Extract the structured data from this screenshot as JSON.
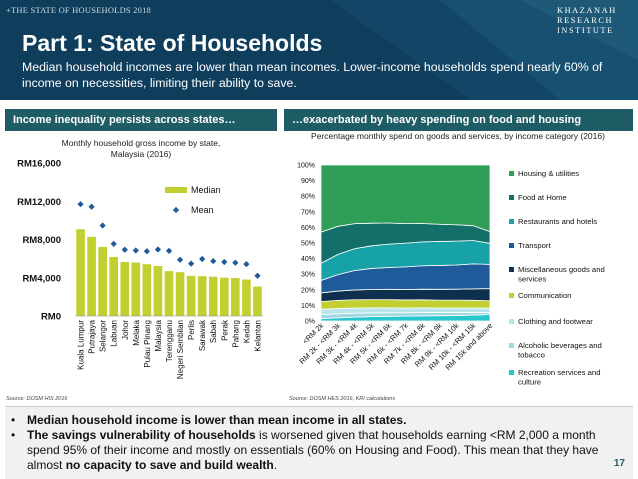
{
  "header": {
    "kicker": "+THE STATE OF HOUSEHOLDS 2018",
    "title": "Part 1: State of Households",
    "subtitle": "Median household incomes are lower than mean incomes. Lower-income households spend nearly 60% of income on necessities, limiting their ability to save.",
    "logo_lines": [
      "KHAZANAH",
      "RESEARCH",
      "INSTITUTE"
    ]
  },
  "banners": {
    "left": "Income inequality persists across states…",
    "right": "…exacerbated by heavy spending on food and housing"
  },
  "colors": {
    "header_bg": "#0f3d5c",
    "banner_bg": "#1e5c66",
    "median_bar": "#c2cf30",
    "mean_marker": "#1f5b9a"
  },
  "sources": {
    "left": "Source: DOSM HIS 2016",
    "right": "Source: DOSM HES 2016, KRI calculations"
  },
  "chart_data": [
    {
      "type": "bar",
      "title": "Monthly household gross income by state, Malaysia (2016)",
      "categories": [
        "Kuala Lumpur",
        "Putrajaya",
        "Selangor",
        "Labuan",
        "Johor",
        "Melaka",
        "Pulau Pinang",
        "Malaysia",
        "Terengganu",
        "Negeri Sembilan",
        "Perlis",
        "Sarawak",
        "Sabah",
        "Perak",
        "Pahang",
        "Kedah",
        "Kelantan"
      ],
      "series": [
        {
          "name": "Median",
          "type": "bar",
          "values": [
            9073,
            8275,
            7225,
            6174,
            5652,
            5588,
            5409,
            5228,
            4694,
            4579,
            4204,
            4163,
            4110,
            4006,
            3979,
            3811,
            3079
          ]
        },
        {
          "name": "Mean",
          "type": "scatter",
          "values": [
            11692,
            11420,
            9463,
            7541,
            6928,
            6849,
            6771,
            6958,
            6815,
            5887,
            5476,
            5959,
            5745,
            5645,
            5564,
            5429,
            4214
          ]
        }
      ],
      "y_tick_labels": [
        "RM0",
        "RM4,000",
        "RM8,000",
        "RM12,000",
        "RM16,000"
      ],
      "ylim": [
        0,
        16000
      ],
      "legend": "top-right",
      "grid": false
    },
    {
      "type": "area",
      "stacked": true,
      "title": "Percentage monthly spend on goods and services, by income category (2016)",
      "categories": [
        "<RM 2k",
        "RM 2k - <RM 3k",
        "RM 3k - <RM 4k",
        "RM 4k - <RM 5k",
        "RM 5k - <RM 6k",
        "RM 6k - <RM 7k",
        "RM 7k - <RM 8k",
        "RM 8k - <RM 9k",
        "RM 9k - <RM 10k",
        "RM 10k - <RM 15k",
        "RM 15k and above"
      ],
      "y_tick_labels": [
        "0%",
        "10%",
        "20%",
        "30%",
        "40%",
        "50%",
        "60%",
        "70%",
        "80%",
        "90%",
        "100%"
      ],
      "ylim": [
        0,
        100
      ],
      "legend": "right",
      "series": [
        {
          "name": "Recreation services and culture",
          "color": "#26c6cf",
          "values": [
            1.5,
            2.0,
            2.5,
            2.8,
            3.0,
            3.1,
            3.3,
            3.4,
            3.5,
            3.8,
            4.2
          ]
        },
        {
          "name": "Alcoholic beverages and tobacco",
          "color": "#9fd8e2",
          "values": [
            2.5,
            2.6,
            2.5,
            2.4,
            2.3,
            2.2,
            2.1,
            2.0,
            1.9,
            1.7,
            1.3
          ]
        },
        {
          "name": "Clothing and footwear",
          "color": "#b9e4ea",
          "values": [
            3.5,
            3.4,
            3.3,
            3.2,
            3.1,
            3.0,
            3.0,
            2.9,
            2.9,
            2.8,
            2.7
          ]
        },
        {
          "name": "Communication",
          "color": "#c2cf30",
          "values": [
            5.0,
            5.2,
            5.3,
            5.3,
            5.3,
            5.2,
            5.2,
            5.1,
            5.1,
            5.0,
            4.8
          ]
        },
        {
          "name": "Miscellaneous goods and services",
          "color": "#0e2f4d",
          "values": [
            5.5,
            6.0,
            6.3,
            6.5,
            6.6,
            6.7,
            6.8,
            6.9,
            7.0,
            7.3,
            7.8
          ]
        },
        {
          "name": "Transport",
          "color": "#1f5b9a",
          "values": [
            8.0,
            10.5,
            12.5,
            13.5,
            14.0,
            14.5,
            15.0,
            15.3,
            15.5,
            16.0,
            15.5
          ]
        },
        {
          "name": "Restaurants and hotels",
          "color": "#17a2a8",
          "values": [
            11.0,
            13.0,
            14.0,
            14.5,
            15.0,
            15.2,
            15.3,
            15.4,
            15.3,
            15.0,
            13.5
          ]
        },
        {
          "name": "Food at Home",
          "color": "#136f6a",
          "values": [
            20.0,
            18.0,
            16.0,
            14.5,
            13.5,
            12.5,
            11.8,
            11.0,
            10.5,
            9.5,
            7.5
          ]
        },
        {
          "name": "Housing & utilities",
          "color": "#2f9e56",
          "values": [
            43.0,
            39.3,
            37.6,
            37.3,
            37.2,
            37.6,
            37.5,
            38.0,
            38.3,
            38.9,
            42.7
          ]
        }
      ]
    }
  ],
  "footer": {
    "bullet1": "Median household income is lower than mean income in all states.",
    "bullet2_part1": "The savings vulnerability of households",
    "bullet2_part2": " is worsened given that households earning <RM 2,000 a month spend 95% of their income and mostly on essentials (60% on Housing and Food). This mean that they have almost ",
    "bullet2_part3": "no capacity to save and build wealth",
    "bullet2_part4": ".",
    "bullet_glyph": "•",
    "page_number": "17"
  }
}
